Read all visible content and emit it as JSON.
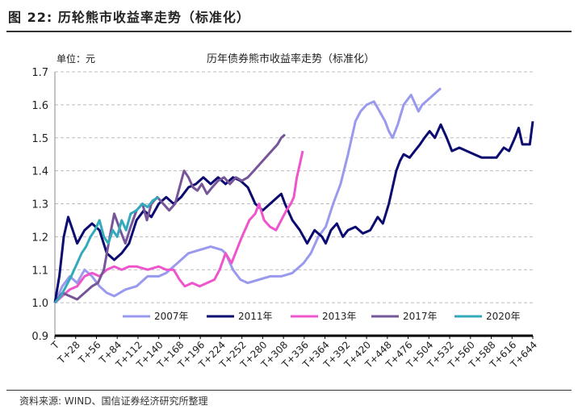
{
  "figure": {
    "label": "图 22:",
    "title": "历轮熊市收益率走势（标准化）",
    "source": "资料来源: WIND、国信证券经济研究所整理"
  },
  "chart_data": {
    "type": "line",
    "title": "历年债券熊市收益率走势（标准化）",
    "unit_label": "单位：元",
    "ylim": [
      0.9,
      1.7
    ],
    "yticks": [
      "0.9",
      "1.0",
      "1.1",
      "1.2",
      "1.3",
      "1.4",
      "1.5",
      "1.6",
      "1.7"
    ],
    "xlim": [
      0,
      644
    ],
    "xticks": [
      "T",
      "T+28",
      "T+56",
      "T+84",
      "T+112",
      "T+140",
      "T+168",
      "T+196",
      "T+224",
      "T+252",
      "T+280",
      "T+308",
      "T+336",
      "T+364",
      "T+392",
      "T+420",
      "T+448",
      "T+476",
      "T+504",
      "T+532",
      "T+560",
      "T+588",
      "T+616",
      "T+644"
    ],
    "grid": true,
    "legend_position": "bottom",
    "series": [
      {
        "name": "2007年",
        "color": "#9999ee",
        "points": [
          [
            0,
            1.0
          ],
          [
            10,
            1.05
          ],
          [
            20,
            1.08
          ],
          [
            30,
            1.06
          ],
          [
            40,
            1.1
          ],
          [
            50,
            1.08
          ],
          [
            60,
            1.05
          ],
          [
            70,
            1.03
          ],
          [
            80,
            1.02
          ],
          [
            95,
            1.04
          ],
          [
            110,
            1.05
          ],
          [
            125,
            1.08
          ],
          [
            140,
            1.08
          ],
          [
            150,
            1.09
          ],
          [
            165,
            1.12
          ],
          [
            180,
            1.15
          ],
          [
            195,
            1.16
          ],
          [
            210,
            1.17
          ],
          [
            225,
            1.16
          ],
          [
            230,
            1.15
          ],
          [
            240,
            1.1
          ],
          [
            250,
            1.07
          ],
          [
            260,
            1.06
          ],
          [
            275,
            1.07
          ],
          [
            290,
            1.08
          ],
          [
            305,
            1.08
          ],
          [
            320,
            1.09
          ],
          [
            335,
            1.12
          ],
          [
            345,
            1.15
          ],
          [
            355,
            1.2
          ],
          [
            365,
            1.23
          ],
          [
            375,
            1.3
          ],
          [
            385,
            1.36
          ],
          [
            395,
            1.45
          ],
          [
            400,
            1.5
          ],
          [
            405,
            1.55
          ],
          [
            412,
            1.58
          ],
          [
            420,
            1.6
          ],
          [
            430,
            1.61
          ],
          [
            440,
            1.57
          ],
          [
            445,
            1.55
          ],
          [
            450,
            1.52
          ],
          [
            455,
            1.5
          ],
          [
            462,
            1.54
          ],
          [
            470,
            1.6
          ],
          [
            480,
            1.63
          ],
          [
            490,
            1.58
          ],
          [
            495,
            1.6
          ],
          [
            505,
            1.62
          ],
          [
            515,
            1.64
          ],
          [
            520,
            1.65
          ]
        ]
      },
      {
        "name": "2011年",
        "color": "#0a0a70",
        "points": [
          [
            0,
            1.0
          ],
          [
            6,
            1.08
          ],
          [
            12,
            1.2
          ],
          [
            18,
            1.26
          ],
          [
            24,
            1.22
          ],
          [
            30,
            1.18
          ],
          [
            40,
            1.22
          ],
          [
            50,
            1.24
          ],
          [
            60,
            1.22
          ],
          [
            70,
            1.15
          ],
          [
            80,
            1.13
          ],
          [
            90,
            1.15
          ],
          [
            100,
            1.18
          ],
          [
            110,
            1.25
          ],
          [
            120,
            1.28
          ],
          [
            130,
            1.26
          ],
          [
            140,
            1.3
          ],
          [
            150,
            1.32
          ],
          [
            160,
            1.3
          ],
          [
            170,
            1.32
          ],
          [
            180,
            1.35
          ],
          [
            190,
            1.36
          ],
          [
            200,
            1.38
          ],
          [
            210,
            1.36
          ],
          [
            220,
            1.38
          ],
          [
            230,
            1.36
          ],
          [
            240,
            1.38
          ],
          [
            250,
            1.37
          ],
          [
            260,
            1.35
          ],
          [
            270,
            1.3
          ],
          [
            280,
            1.28
          ],
          [
            290,
            1.3
          ],
          [
            300,
            1.32
          ],
          [
            305,
            1.33
          ],
          [
            310,
            1.3
          ],
          [
            320,
            1.25
          ],
          [
            330,
            1.22
          ],
          [
            340,
            1.18
          ],
          [
            350,
            1.22
          ],
          [
            360,
            1.2
          ],
          [
            365,
            1.18
          ],
          [
            372,
            1.22
          ],
          [
            380,
            1.24
          ],
          [
            388,
            1.2
          ],
          [
            395,
            1.22
          ],
          [
            405,
            1.23
          ],
          [
            415,
            1.21
          ],
          [
            425,
            1.22
          ],
          [
            435,
            1.26
          ],
          [
            442,
            1.24
          ],
          [
            450,
            1.3
          ],
          [
            455,
            1.35
          ],
          [
            460,
            1.4
          ],
          [
            465,
            1.43
          ],
          [
            470,
            1.45
          ],
          [
            478,
            1.44
          ],
          [
            485,
            1.46
          ],
          [
            492,
            1.48
          ],
          [
            498,
            1.5
          ],
          [
            505,
            1.52
          ],
          [
            512,
            1.5
          ],
          [
            520,
            1.54
          ],
          [
            528,
            1.5
          ],
          [
            535,
            1.46
          ],
          [
            545,
            1.47
          ],
          [
            555,
            1.46
          ],
          [
            565,
            1.45
          ],
          [
            575,
            1.44
          ],
          [
            585,
            1.44
          ],
          [
            595,
            1.44
          ],
          [
            605,
            1.47
          ],
          [
            612,
            1.46
          ],
          [
            620,
            1.5
          ],
          [
            625,
            1.53
          ],
          [
            630,
            1.48
          ],
          [
            640,
            1.48
          ],
          [
            644,
            1.55
          ]
        ]
      },
      {
        "name": "2013年",
        "color": "#ee55cc",
        "points": [
          [
            0,
            1.0
          ],
          [
            10,
            1.02
          ],
          [
            20,
            1.04
          ],
          [
            30,
            1.05
          ],
          [
            40,
            1.08
          ],
          [
            50,
            1.09
          ],
          [
            60,
            1.08
          ],
          [
            70,
            1.1
          ],
          [
            80,
            1.11
          ],
          [
            90,
            1.1
          ],
          [
            100,
            1.11
          ],
          [
            110,
            1.11
          ],
          [
            125,
            1.1
          ],
          [
            140,
            1.11
          ],
          [
            150,
            1.1
          ],
          [
            160,
            1.1
          ],
          [
            168,
            1.07
          ],
          [
            175,
            1.05
          ],
          [
            185,
            1.06
          ],
          [
            195,
            1.05
          ],
          [
            205,
            1.06
          ],
          [
            215,
            1.07
          ],
          [
            222,
            1.1
          ],
          [
            230,
            1.15
          ],
          [
            238,
            1.12
          ],
          [
            245,
            1.16
          ],
          [
            252,
            1.2
          ],
          [
            258,
            1.23
          ],
          [
            262,
            1.25
          ],
          [
            270,
            1.27
          ],
          [
            275,
            1.3
          ],
          [
            282,
            1.25
          ],
          [
            290,
            1.23
          ],
          [
            298,
            1.22
          ],
          [
            305,
            1.25
          ],
          [
            312,
            1.28
          ],
          [
            318,
            1.3
          ],
          [
            322,
            1.32
          ],
          [
            326,
            1.38
          ],
          [
            330,
            1.42
          ],
          [
            334,
            1.46
          ]
        ]
      },
      {
        "name": "2017年",
        "color": "#775599",
        "points": [
          [
            0,
            1.0
          ],
          [
            10,
            1.03
          ],
          [
            20,
            1.02
          ],
          [
            30,
            1.01
          ],
          [
            40,
            1.03
          ],
          [
            50,
            1.05
          ],
          [
            58,
            1.06
          ],
          [
            66,
            1.1
          ],
          [
            74,
            1.2
          ],
          [
            80,
            1.27
          ],
          [
            88,
            1.22
          ],
          [
            95,
            1.18
          ],
          [
            102,
            1.23
          ],
          [
            110,
            1.28
          ],
          [
            118,
            1.3
          ],
          [
            124,
            1.25
          ],
          [
            130,
            1.3
          ],
          [
            138,
            1.32
          ],
          [
            146,
            1.3
          ],
          [
            154,
            1.28
          ],
          [
            162,
            1.3
          ],
          [
            168,
            1.35
          ],
          [
            174,
            1.4
          ],
          [
            180,
            1.38
          ],
          [
            186,
            1.35
          ],
          [
            192,
            1.34
          ],
          [
            198,
            1.36
          ],
          [
            205,
            1.33
          ],
          [
            212,
            1.35
          ],
          [
            220,
            1.37
          ],
          [
            228,
            1.38
          ],
          [
            236,
            1.36
          ],
          [
            244,
            1.38
          ],
          [
            252,
            1.37
          ],
          [
            260,
            1.38
          ],
          [
            268,
            1.4
          ],
          [
            276,
            1.42
          ],
          [
            284,
            1.44
          ],
          [
            292,
            1.46
          ],
          [
            300,
            1.48
          ],
          [
            305,
            1.5
          ],
          [
            310,
            1.51
          ]
        ]
      },
      {
        "name": "2020年",
        "color": "#33aabb",
        "points": [
          [
            0,
            1.0
          ],
          [
            8,
            1.02
          ],
          [
            15,
            1.05
          ],
          [
            22,
            1.08
          ],
          [
            30,
            1.12
          ],
          [
            36,
            1.15
          ],
          [
            42,
            1.17
          ],
          [
            48,
            1.2
          ],
          [
            54,
            1.22
          ],
          [
            60,
            1.25
          ],
          [
            66,
            1.2
          ],
          [
            72,
            1.18
          ],
          [
            78,
            1.22
          ],
          [
            84,
            1.2
          ],
          [
            90,
            1.25
          ],
          [
            96,
            1.22
          ],
          [
            102,
            1.27
          ],
          [
            110,
            1.28
          ],
          [
            118,
            1.3
          ],
          [
            125,
            1.29
          ],
          [
            132,
            1.31
          ],
          [
            140,
            1.32
          ]
        ]
      }
    ]
  }
}
